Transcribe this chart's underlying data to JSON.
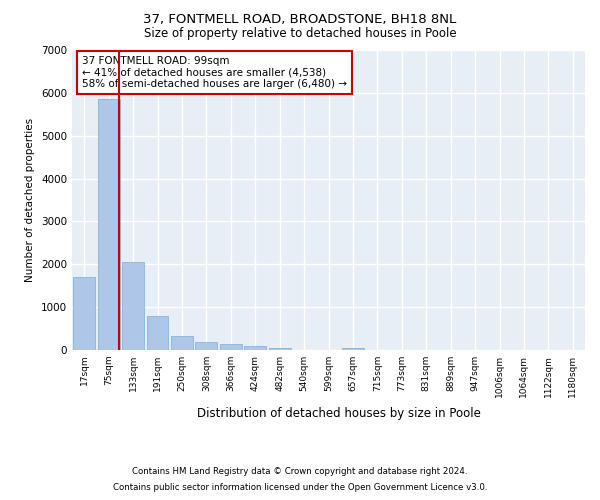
{
  "title1": "37, FONTMELL ROAD, BROADSTONE, BH18 8NL",
  "title2": "Size of property relative to detached houses in Poole",
  "xlabel": "Distribution of detached houses by size in Poole",
  "ylabel": "Number of detached properties",
  "footer1": "Contains HM Land Registry data © Crown copyright and database right 2024.",
  "footer2": "Contains public sector information licensed under the Open Government Licence v3.0.",
  "annotation_line1": "37 FONTMELL ROAD: 99sqm",
  "annotation_line2": "← 41% of detached houses are smaller (4,538)",
  "annotation_line3": "58% of semi-detached houses are larger (6,480) →",
  "bar_labels": [
    "17sqm",
    "75sqm",
    "133sqm",
    "191sqm",
    "250sqm",
    "308sqm",
    "366sqm",
    "424sqm",
    "482sqm",
    "540sqm",
    "599sqm",
    "657sqm",
    "715sqm",
    "773sqm",
    "831sqm",
    "889sqm",
    "947sqm",
    "1006sqm",
    "1064sqm",
    "1122sqm",
    "1180sqm"
  ],
  "bar_values": [
    1700,
    5850,
    2050,
    800,
    330,
    190,
    130,
    90,
    50,
    0,
    0,
    50,
    0,
    0,
    0,
    0,
    0,
    0,
    0,
    0,
    0
  ],
  "bar_color": "#aec6e8",
  "bar_edge_color": "#7aadd4",
  "ylim": [
    0,
    7000
  ],
  "yticks": [
    0,
    1000,
    2000,
    3000,
    4000,
    5000,
    6000,
    7000
  ],
  "bg_color": "#e8eef5",
  "grid_color": "#ffffff",
  "annotation_box_color": "#ffffff",
  "annotation_box_edge": "#cc0000",
  "red_line_color": "#cc0000",
  "red_line_x": 1.42
}
